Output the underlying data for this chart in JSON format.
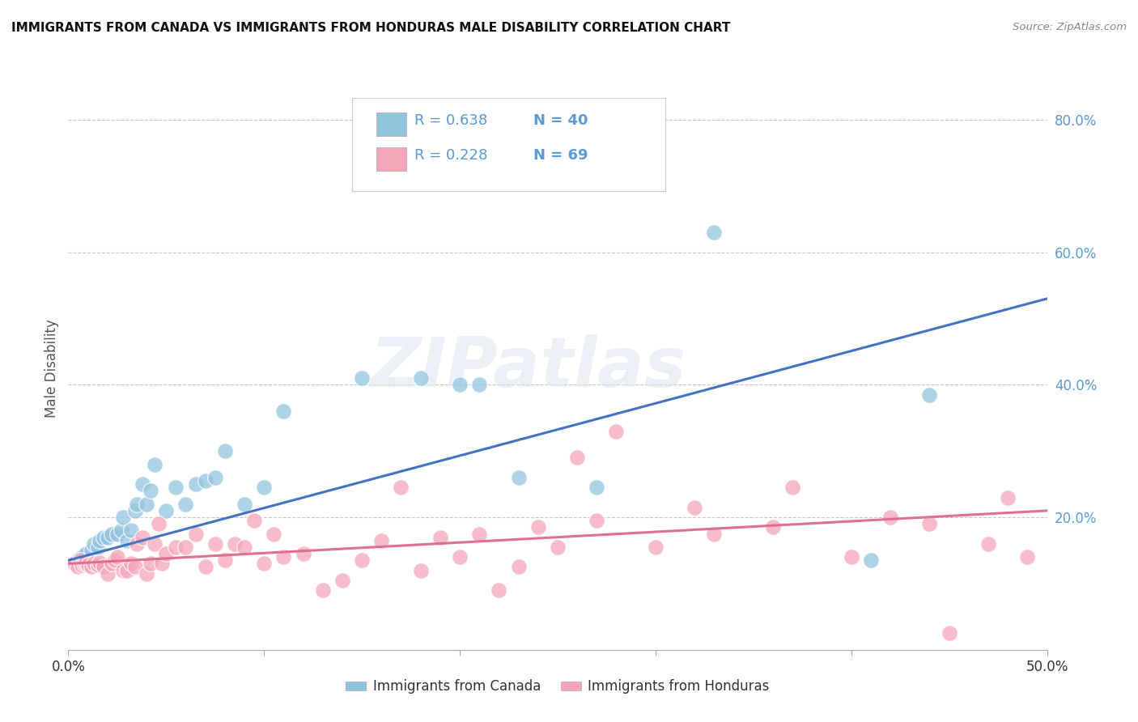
{
  "title": "IMMIGRANTS FROM CANADA VS IMMIGRANTS FROM HONDURAS MALE DISABILITY CORRELATION CHART",
  "source": "Source: ZipAtlas.com",
  "ylabel": "Male Disability",
  "xlim": [
    0.0,
    0.5
  ],
  "ylim": [
    0.0,
    0.85
  ],
  "yticks_right": [
    0.2,
    0.4,
    0.6,
    0.8
  ],
  "ytick_right_labels": [
    "20.0%",
    "40.0%",
    "60.0%",
    "80.0%"
  ],
  "legend_r1": "R = 0.638",
  "legend_n1": "N = 40",
  "legend_r2": "R = 0.228",
  "legend_n2": "N = 69",
  "legend_label1": "Immigrants from Canada",
  "legend_label2": "Immigrants from Honduras",
  "canada_color": "#92c5de",
  "honduras_color": "#f4a6b8",
  "canada_line_color": "#4472c4",
  "honduras_line_color": "#e07090",
  "background_color": "#ffffff",
  "grid_color": "#c8c8c8",
  "watermark_text": "ZIPatlas",
  "canada_line_x0": 0.0,
  "canada_line_y0": 0.135,
  "canada_line_x1": 0.5,
  "canada_line_y1": 0.53,
  "honduras_line_x0": 0.0,
  "honduras_line_y0": 0.13,
  "honduras_line_x1": 0.5,
  "honduras_line_y1": 0.21,
  "canada_points_x": [
    0.005,
    0.007,
    0.009,
    0.012,
    0.013,
    0.015,
    0.016,
    0.018,
    0.02,
    0.022,
    0.025,
    0.027,
    0.028,
    0.03,
    0.032,
    0.034,
    0.035,
    0.038,
    0.04,
    0.042,
    0.044,
    0.05,
    0.055,
    0.06,
    0.065,
    0.07,
    0.075,
    0.08,
    0.09,
    0.1,
    0.11,
    0.15,
    0.18,
    0.2,
    0.21,
    0.23,
    0.27,
    0.33,
    0.41,
    0.44
  ],
  "canada_points_y": [
    0.135,
    0.14,
    0.145,
    0.15,
    0.16,
    0.155,
    0.165,
    0.17,
    0.17,
    0.175,
    0.175,
    0.18,
    0.2,
    0.165,
    0.18,
    0.21,
    0.22,
    0.25,
    0.22,
    0.24,
    0.28,
    0.21,
    0.245,
    0.22,
    0.25,
    0.255,
    0.26,
    0.3,
    0.22,
    0.245,
    0.36,
    0.41,
    0.41,
    0.4,
    0.4,
    0.26,
    0.245,
    0.63,
    0.135,
    0.385
  ],
  "honduras_points_x": [
    0.003,
    0.005,
    0.006,
    0.007,
    0.008,
    0.009,
    0.01,
    0.012,
    0.013,
    0.015,
    0.016,
    0.018,
    0.02,
    0.022,
    0.024,
    0.025,
    0.028,
    0.03,
    0.032,
    0.034,
    0.035,
    0.038,
    0.04,
    0.042,
    0.044,
    0.046,
    0.048,
    0.05,
    0.055,
    0.06,
    0.065,
    0.07,
    0.075,
    0.08,
    0.085,
    0.09,
    0.095,
    0.1,
    0.105,
    0.11,
    0.12,
    0.13,
    0.14,
    0.15,
    0.16,
    0.17,
    0.18,
    0.19,
    0.2,
    0.21,
    0.22,
    0.23,
    0.24,
    0.25,
    0.26,
    0.27,
    0.28,
    0.3,
    0.32,
    0.33,
    0.36,
    0.37,
    0.4,
    0.42,
    0.44,
    0.45,
    0.47,
    0.48,
    0.49
  ],
  "honduras_points_y": [
    0.13,
    0.125,
    0.135,
    0.128,
    0.13,
    0.132,
    0.128,
    0.125,
    0.13,
    0.128,
    0.132,
    0.125,
    0.115,
    0.13,
    0.135,
    0.14,
    0.12,
    0.12,
    0.13,
    0.125,
    0.16,
    0.17,
    0.115,
    0.13,
    0.16,
    0.19,
    0.13,
    0.145,
    0.155,
    0.155,
    0.175,
    0.125,
    0.16,
    0.135,
    0.16,
    0.155,
    0.195,
    0.13,
    0.175,
    0.14,
    0.145,
    0.09,
    0.105,
    0.135,
    0.165,
    0.245,
    0.12,
    0.17,
    0.14,
    0.175,
    0.09,
    0.125,
    0.185,
    0.155,
    0.29,
    0.195,
    0.33,
    0.155,
    0.215,
    0.175,
    0.185,
    0.245,
    0.14,
    0.2,
    0.19,
    0.025,
    0.16,
    0.23,
    0.14
  ]
}
